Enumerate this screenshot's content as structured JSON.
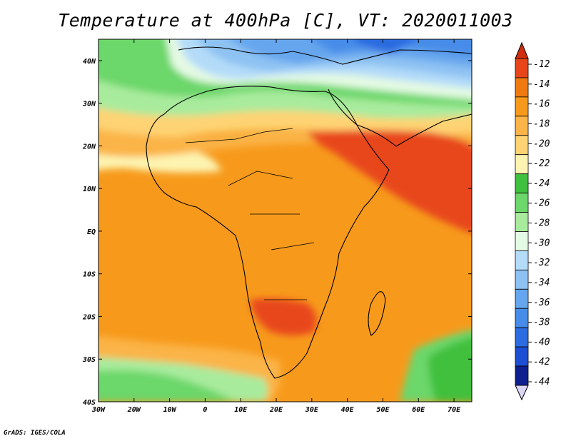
{
  "title": "Temperature at 400hPa [C], VT: 2020011003",
  "credit": "GrADS: IGES/COLA",
  "map": {
    "type": "filled-contour-map",
    "variable": "Temperature",
    "level": "400hPa",
    "units": "C",
    "valid_time": "2020011003",
    "lon_range": [
      -30,
      75
    ],
    "lat_range": [
      -40,
      45
    ],
    "lon_ticks": [
      "30W",
      "20W",
      "10W",
      "0",
      "10E",
      "20E",
      "30E",
      "40E",
      "50E",
      "60E",
      "70E"
    ],
    "lat_ticks": [
      "40N",
      "30N",
      "20N",
      "10N",
      "EQ",
      "10S",
      "20S",
      "30S",
      "40S"
    ]
  },
  "colorbar": {
    "levels": [
      "-12",
      "-14",
      "-16",
      "-18",
      "-20",
      "-22",
      "-24",
      "-26",
      "-28",
      "-30",
      "-32",
      "-34",
      "-36",
      "-38",
      "-40",
      "-42",
      "-44"
    ],
    "colors": [
      "#e8461a",
      "#f07a12",
      "#f79a1c",
      "#fbb447",
      "#fed373",
      "#fdf4b1",
      "#3fc03e",
      "#6cd76a",
      "#a9eb9d",
      "#e5fae4",
      "#b4dcf9",
      "#8ec2f3",
      "#66a6ee",
      "#468ce8",
      "#2b6ce0",
      "#1d4fd4",
      "#0f1f8f"
    ],
    "over_color": "#d22d0c",
    "under_color": "#dcd6f6"
  }
}
